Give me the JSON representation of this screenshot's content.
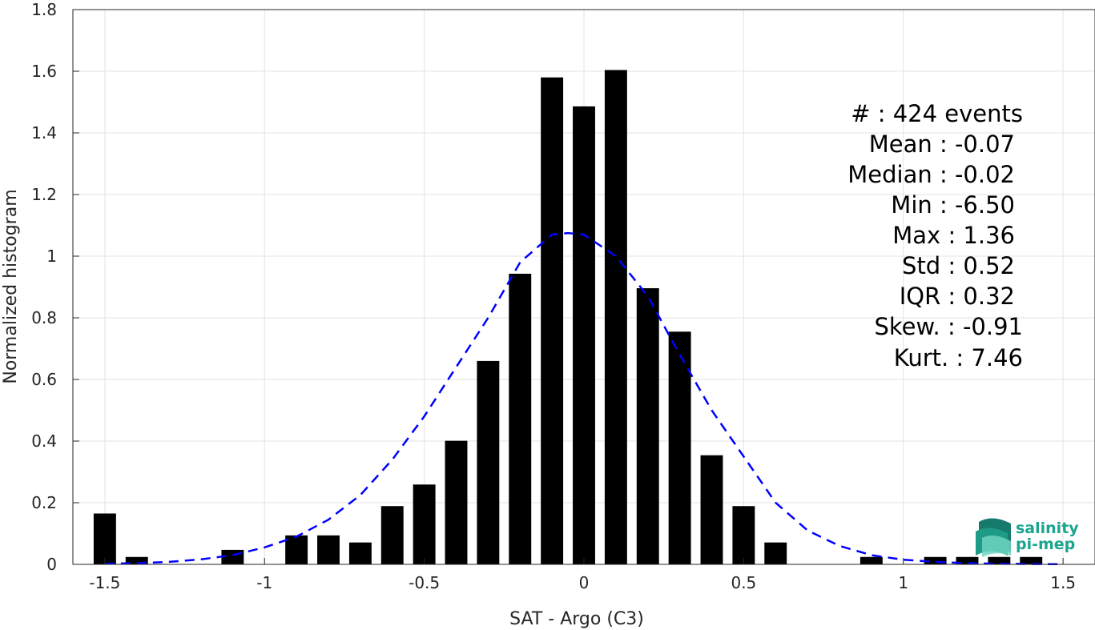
{
  "chart_data": {
    "type": "bar",
    "xlabel": "SAT - Argo (C3)",
    "ylabel": "Normalized histogram",
    "xlim": [
      -1.6,
      1.6
    ],
    "ylim": [
      0,
      1.8
    ],
    "grid": true,
    "x_ticks": [
      -1.5,
      -1,
      -0.5,
      0,
      0.5,
      1,
      1.5
    ],
    "x_tick_labels": [
      "-1.5",
      "-1",
      "-0.5",
      "0",
      "0.5",
      "1",
      "1.5"
    ],
    "y_ticks": [
      0,
      0.2,
      0.4,
      0.6,
      0.8,
      1,
      1.2,
      1.4,
      1.6,
      1.8
    ],
    "y_tick_labels": [
      "0",
      "0.2",
      "0.4",
      "0.6",
      "0.8",
      "1",
      "1.2",
      "1.4",
      "1.6",
      "1.8"
    ],
    "bar_color": "#000000",
    "bar_width": 0.07,
    "series": [
      {
        "x": [
          -1.5,
          -1.4,
          -1.3,
          -1.2,
          -1.1,
          -1.0,
          -0.9,
          -0.8,
          -0.7,
          -0.6,
          -0.5,
          -0.4,
          -0.3,
          -0.2,
          -0.1,
          0.0,
          0.1,
          0.2,
          0.3,
          0.4,
          0.5,
          0.6,
          0.7,
          0.8,
          0.9,
          1.0,
          1.1,
          1.2,
          1.3,
          1.4
        ],
        "values": [
          0.165,
          0.024,
          0,
          0,
          0.047,
          0,
          0.094,
          0.094,
          0.071,
          0.189,
          0.259,
          0.401,
          0.66,
          0.943,
          1.58,
          1.486,
          1.604,
          0.896,
          0.755,
          0.354,
          0.189,
          0.071,
          0,
          0,
          0.024,
          0,
          0.024,
          0.024,
          0.024,
          0.024
        ]
      }
    ],
    "fit": {
      "style": "dashed",
      "color": "#0000ff",
      "x": [
        -1.5,
        -1.4,
        -1.3,
        -1.2,
        -1.1,
        -1.0,
        -0.9,
        -0.8,
        -0.7,
        -0.6,
        -0.5,
        -0.4,
        -0.3,
        -0.2,
        -0.1,
        -0.05,
        0.0,
        0.1,
        0.2,
        0.3,
        0.4,
        0.5,
        0.6,
        0.7,
        0.8,
        0.9,
        1.0,
        1.1,
        1.2,
        1.3,
        1.4,
        1.5
      ],
      "y": [
        0.002,
        0.004,
        0.008,
        0.016,
        0.03,
        0.055,
        0.09,
        0.145,
        0.225,
        0.34,
        0.48,
        0.64,
        0.8,
        0.98,
        1.07,
        1.075,
        1.07,
        1.0,
        0.87,
        0.68,
        0.5,
        0.35,
        0.2,
        0.11,
        0.06,
        0.03,
        0.015,
        0.008,
        0.004,
        0.002,
        0.001,
        0.0005
      ]
    }
  },
  "stats": [
    {
      "label": "#  : 424 events"
    },
    {
      "label": "Mean : -0.07"
    },
    {
      "label": "Median : -0.02"
    },
    {
      "label": "Min : -6.50"
    },
    {
      "label": "Max : 1.36"
    },
    {
      "label": "Std : 0.52"
    },
    {
      "label": "IQR : 0.32"
    },
    {
      "label": "Skew. : -0.91"
    },
    {
      "label": "Kurt. : 7.46"
    }
  ],
  "logo": {
    "line1": "salinity",
    "line2": "pi-mep",
    "color": "#1aa58f"
  }
}
